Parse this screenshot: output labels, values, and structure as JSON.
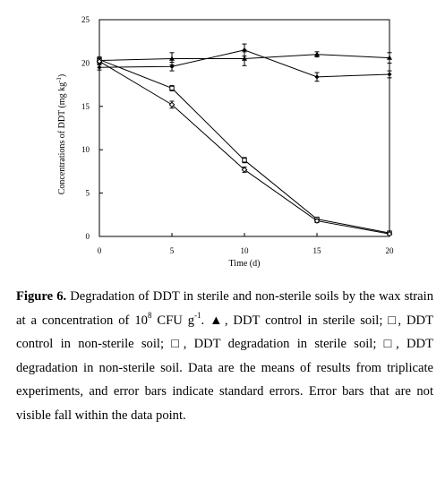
{
  "chart_data": {
    "type": "line",
    "xlabel": "Time (d)",
    "ylabel": "Concentrations of DDT (mg kg",
    "ylabel_sup": "-1",
    "ylabel_tail": ")",
    "xlim": [
      0,
      20
    ],
    "ylim": [
      0,
      25
    ],
    "x_ticks": [
      "0",
      "5",
      "10",
      "15",
      "20"
    ],
    "y_ticks": [
      "0",
      "5",
      "10",
      "15",
      "20",
      "25"
    ],
    "x": [
      0,
      5,
      10,
      15,
      20
    ],
    "grid": false,
    "series": [
      {
        "marker": "triangle",
        "values": [
          20.3,
          20.5,
          20.5,
          21.0,
          20.6
        ],
        "errors": [
          0.3,
          0.7,
          0.8,
          0.3,
          0.6
        ]
      },
      {
        "marker": "filled-diamond",
        "values": [
          19.5,
          19.6,
          21.5,
          18.4,
          18.7
        ],
        "errors": [
          0.3,
          0.5,
          0.7,
          0.5,
          0.4
        ]
      },
      {
        "marker": "open-square",
        "values": [
          20.4,
          17.1,
          8.8,
          2.0,
          0.4
        ],
        "errors": [
          0.3,
          0.3,
          0.3,
          0.2,
          0.1
        ]
      },
      {
        "marker": "open-diamond",
        "values": [
          20.2,
          15.2,
          7.7,
          1.8,
          0.3
        ],
        "errors": [
          0.3,
          0.4,
          0.3,
          0.2,
          0.1
        ]
      }
    ]
  },
  "caption": {
    "label": "Figure 6.",
    "text_1": " Degradation of DDT in sterile and non-sterile soils by the wax strain at a concentration of 10",
    "sup_1": "8",
    "text_2": " CFU g",
    "sup_2": "-1",
    "text_3": ". ▲, DDT control in sterile soil; □, DDT control in non-sterile soil; □, DDT degradation in sterile soil; □, DDT degradation in non-sterile soil. Data are the means of results from triplicate experiments, and error bars indicate standard errors. Error bars that are not visible fall within the data point."
  }
}
